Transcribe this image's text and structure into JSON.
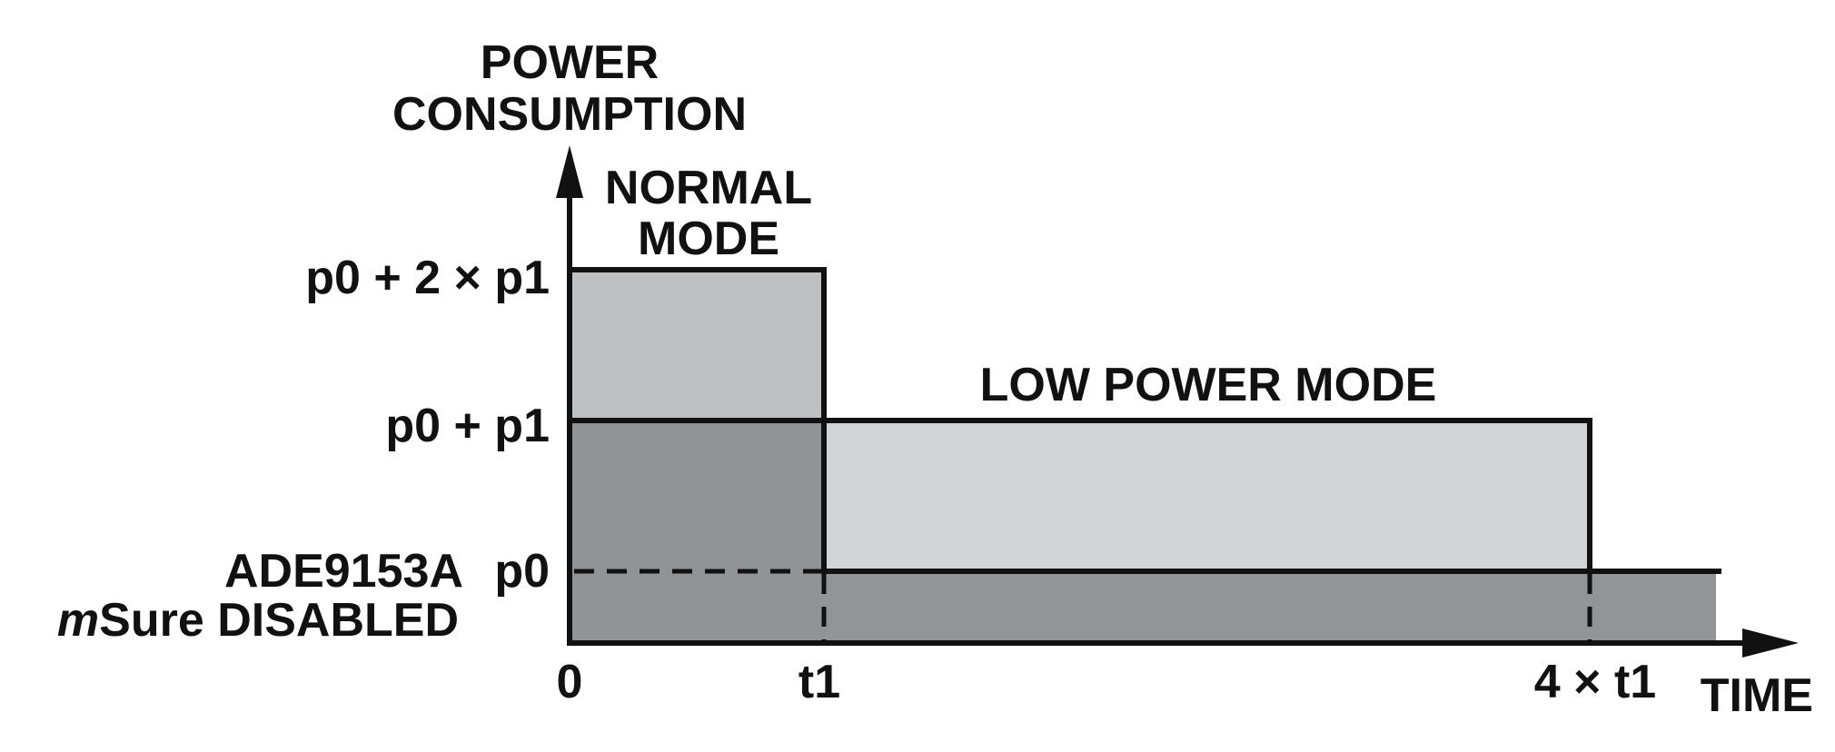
{
  "axes": {
    "y_title": [
      "POWER",
      "CONSUMPTION"
    ],
    "x_title": "TIME",
    "y_ticks": [
      "p0 + 2 × p1",
      "p0 + p1",
      "p0"
    ],
    "x_ticks": [
      "0",
      "t1",
      "4 × t1"
    ]
  },
  "regions": {
    "normal_mode": [
      "NORMAL",
      "MODE"
    ],
    "low_power_mode": "LOW POWER MODE",
    "baseline_line1": "ADE9153A",
    "baseline_line2_italic": "m",
    "baseline_line2_rest": "Sure DISABLED"
  },
  "colors": {
    "normal_top": "#bfc0c2",
    "overlap_dark": "#929395",
    "low_power": "#d3d4d6",
    "baseline": "#939496",
    "line": "#111111"
  }
}
